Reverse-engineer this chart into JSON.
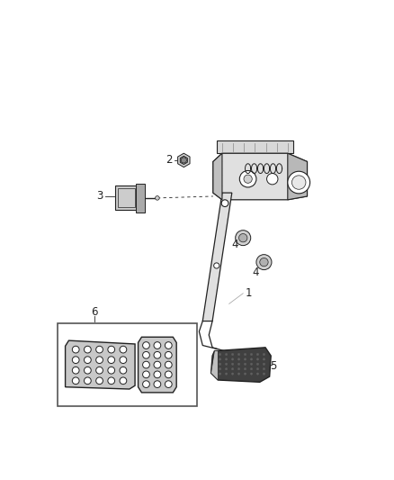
{
  "background_color": "#ffffff",
  "line_color": "#222222",
  "fig_width": 4.38,
  "fig_height": 5.33,
  "dpi": 100
}
